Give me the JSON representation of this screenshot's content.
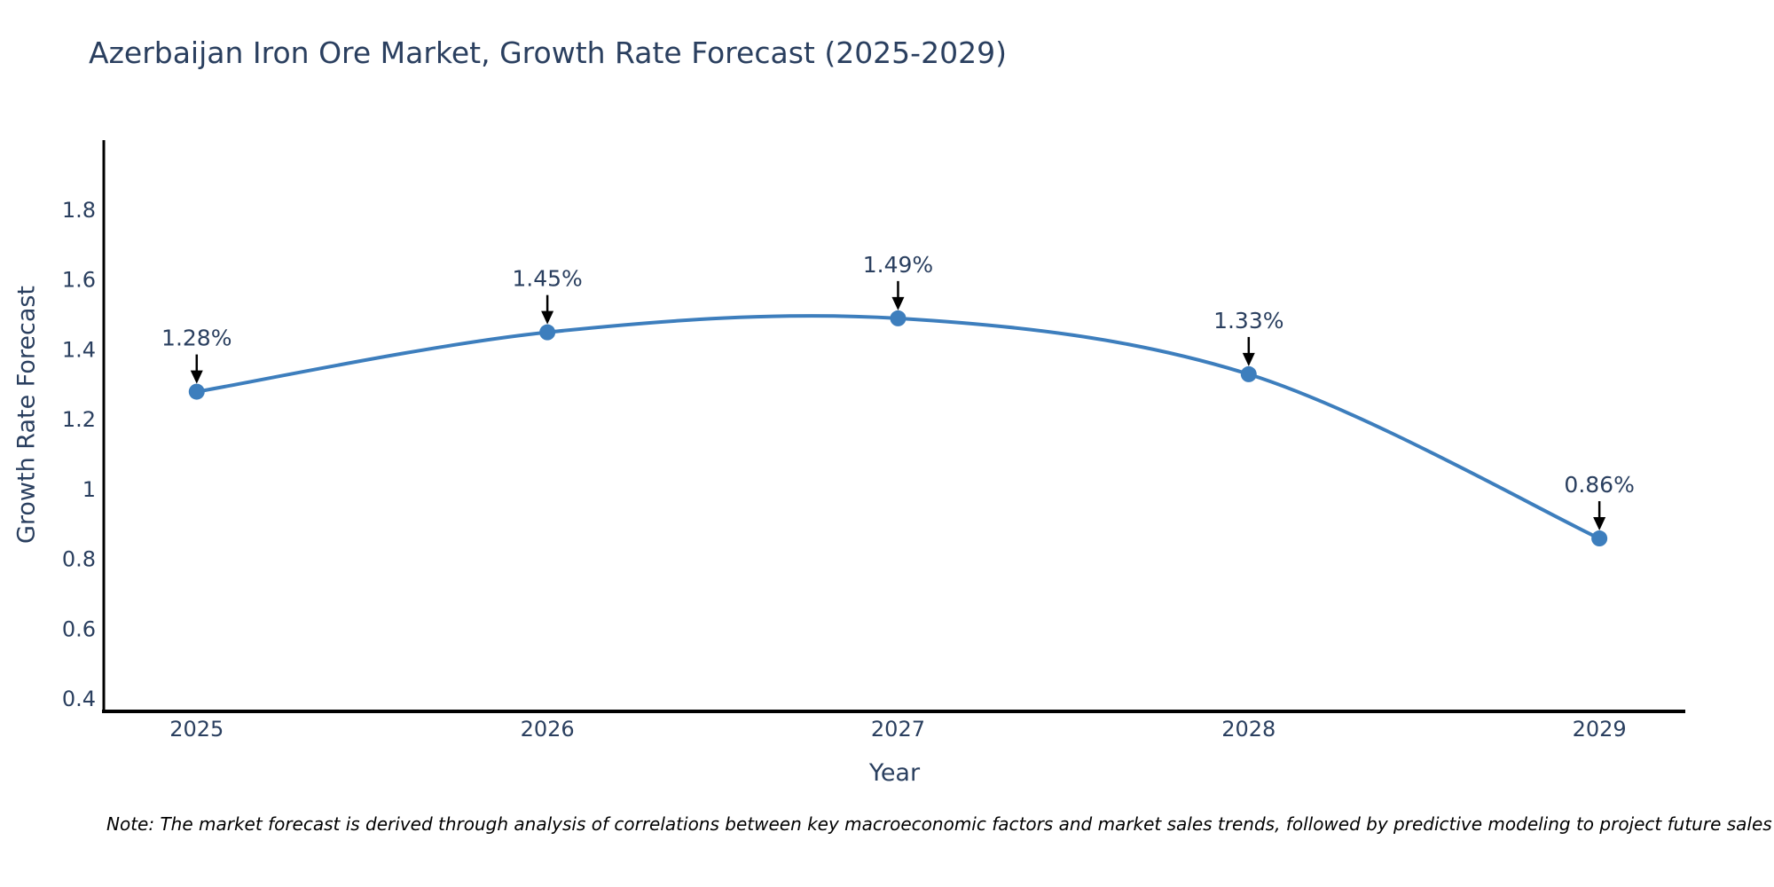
{
  "title": "Azerbaijan Iron Ore Market, Growth Rate Forecast (2025-2029)",
  "note": "Note: The market forecast is derived through analysis of correlations between key macroeconomic factors and market sales trends, followed by predictive modeling to project future sales",
  "chart_data": {
    "type": "line",
    "title": "Azerbaijan Iron Ore Market, Growth Rate Forecast (2025-2029)",
    "xlabel": "Year",
    "ylabel": "Growth Rate Forecast",
    "x": [
      2025,
      2026,
      2027,
      2028,
      2029
    ],
    "x_tick_labels": [
      "2025",
      "2026",
      "2027",
      "2028",
      "2029"
    ],
    "series": [
      {
        "name": "Growth Rate Forecast",
        "values": [
          1.28,
          1.45,
          1.49,
          1.33,
          0.86
        ]
      }
    ],
    "point_labels": [
      "1.28%",
      "1.45%",
      "1.49%",
      "1.33%",
      "0.86%"
    ],
    "y_ticks": [
      1.8,
      1.6,
      1.4,
      1.2,
      1,
      0.8,
      0.6,
      0.4
    ],
    "ylim": [
      0.365,
      2.0
    ],
    "xlim": [
      2024.735,
      2029.245
    ],
    "grid": false,
    "legend": "none",
    "line_style": "spline",
    "marker": "circle",
    "colors": {
      "line": "#3d7ebd",
      "marker": "#3d7ebd",
      "axis": "#000000",
      "text": "#2a3f5f",
      "annotation_text": "#2a3f5f",
      "arrow": "#000000",
      "note": "#000000",
      "background": "#ffffff"
    }
  }
}
